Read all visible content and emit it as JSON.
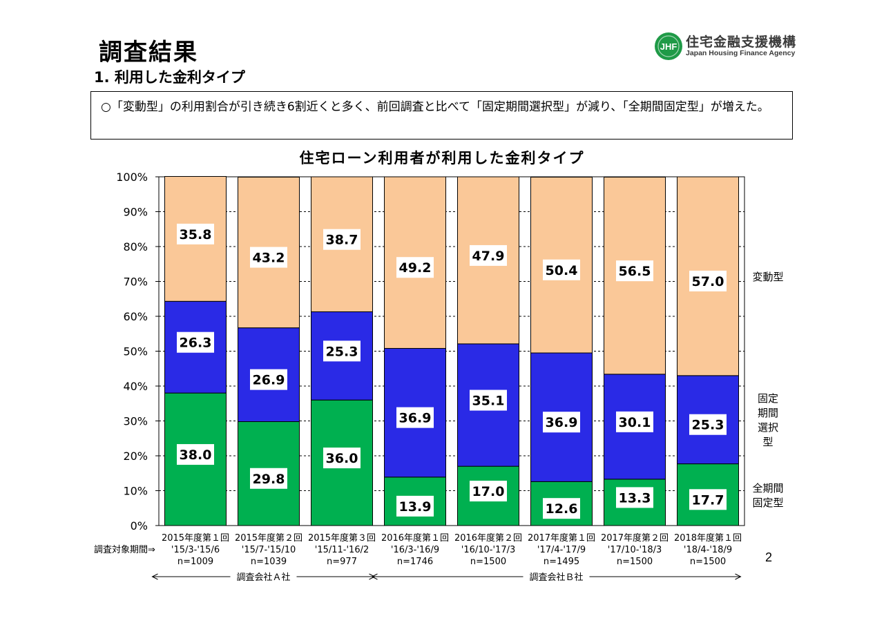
{
  "header": {
    "title": "調査結果",
    "section": "1. 利用した金利タイプ",
    "logo_text": "住宅金融支援機構",
    "logo_subtext": "Japan Housing Finance Agency",
    "logo_mark": "JHF"
  },
  "summary": "○「変動型」の利用割合が引き続き6割近くと多く、前回調査と比べて「固定期間選択型」が減り、「全期間固定型」が増えた。",
  "page_number": "2",
  "colors": {
    "variable": "#FAC898",
    "fixed_period_select": "#2A2AE6",
    "full_term_fixed": "#00B050"
  },
  "chart_data": {
    "type": "bar",
    "stacked": true,
    "title": "住宅ローン利用者が利用した金利タイプ",
    "ylim": [
      0,
      100
    ],
    "y_ticks": [
      "0%",
      "10%",
      "20%",
      "30%",
      "40%",
      "50%",
      "60%",
      "70%",
      "80%",
      "90%",
      "100%"
    ],
    "categories": [
      "2015年度第１回",
      "2015年度第２回",
      "2015年度第３回",
      "2016年度第１回",
      "2016年度第２回",
      "2017年度第１回",
      "2017年度第２回",
      "2018年度第１回"
    ],
    "periods": [
      "'15/3-'15/6",
      "'15/7-'15/10",
      "'15/11-'16/2",
      "'16/3-'16/9",
      "'16/10-'17/3",
      "'17/4-'17/9",
      "'17/10-'18/3",
      "'18/4-'18/9"
    ],
    "sample_sizes": [
      "n=1009",
      "n=1039",
      "n=977",
      "n=1746",
      "n=1500",
      "n=1495",
      "n=1500",
      "n=1500"
    ],
    "period_label": "調査対象期間⇒",
    "series": [
      {
        "name": "全期間固定型",
        "values": [
          38.0,
          29.8,
          36.0,
          13.9,
          17.0,
          12.6,
          13.3,
          17.7
        ]
      },
      {
        "name": "固定期間選択型",
        "values": [
          26.3,
          26.9,
          25.3,
          36.9,
          35.1,
          36.9,
          30.1,
          25.3
        ]
      },
      {
        "name": "変動型",
        "values": [
          35.8,
          43.2,
          38.7,
          49.2,
          47.9,
          50.4,
          56.5,
          57.0
        ]
      }
    ],
    "surveyors": [
      {
        "label": "調査会社Ａ社",
        "first": 0,
        "last": 2
      },
      {
        "label": "調査会社Ｂ社",
        "first": 3,
        "last": 7
      }
    ]
  }
}
